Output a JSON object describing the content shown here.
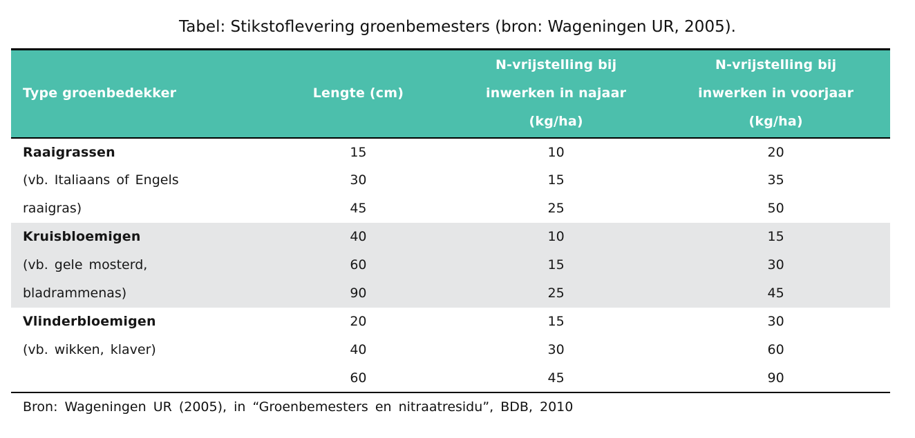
{
  "caption": "Tabel: Stikstoflevering groenbemesters (bron: Wageningen UR, 2005).",
  "colors": {
    "header_bg": "#4CBFAC",
    "header_text": "#FFFFFF",
    "band_bg": "#E5E6E7",
    "border": "#000000",
    "page_bg": "#FFFFFF"
  },
  "table": {
    "headers": {
      "type": "Type groenbedekker",
      "lengte": "Lengte (cm)",
      "najaar": "N-vrijstelling bij\ninwerken in najaar\n(kg/ha)",
      "voorjaar": "N-vrijstelling bij\ninwerken in voorjaar\n(kg/ha)"
    },
    "rows": [
      {
        "label": "Raaigrassen",
        "lengte": "15",
        "najaar": "10",
        "voorjaar": "20"
      },
      {
        "label": "(vb. Italiaans of Engels",
        "lengte": "30",
        "najaar": "15",
        "voorjaar": "35"
      },
      {
        "label": "raaigras)",
        "lengte": "45",
        "najaar": "25",
        "voorjaar": "50"
      },
      {
        "label": "Kruisbloemigen",
        "lengte": "40",
        "najaar": "10",
        "voorjaar": "15"
      },
      {
        "label": "(vb. gele mosterd,",
        "lengte": "60",
        "najaar": "15",
        "voorjaar": "30"
      },
      {
        "label": "bladrammenas)",
        "lengte": "90",
        "najaar": "25",
        "voorjaar": "45"
      },
      {
        "label": "Vlinderbloemigen",
        "lengte": "20",
        "najaar": "15",
        "voorjaar": "30"
      },
      {
        "label": "(vb. wikken, klaver)",
        "lengte": "40",
        "najaar": "30",
        "voorjaar": "60"
      },
      {
        "label": "",
        "lengte": "60",
        "najaar": "45",
        "voorjaar": "90"
      }
    ]
  },
  "source_note": "Bron: Wageningen UR (2005), in “Groenbemesters en nitraatresidu”, BDB, 2010",
  "chart_data": {
    "type": "table",
    "title": "Tabel: Stikstoflevering groenbemesters (bron: Wageningen UR, 2005).",
    "columns": [
      "Type groenbedekker",
      "Lengte (cm)",
      "N-vrijstelling bij inwerken in najaar (kg/ha)",
      "N-vrijstelling bij inwerken in voorjaar (kg/ha)"
    ],
    "groups": [
      {
        "type": "Raaigrassen (vb. Italiaans of Engels raaigras)",
        "rows": [
          [
            15,
            10,
            20
          ],
          [
            30,
            15,
            35
          ],
          [
            45,
            25,
            50
          ]
        ]
      },
      {
        "type": "Kruisbloemigen (vb. gele mosterd, bladrammenas)",
        "rows": [
          [
            40,
            10,
            15
          ],
          [
            60,
            15,
            30
          ],
          [
            90,
            25,
            45
          ]
        ]
      },
      {
        "type": "Vlinderbloemigen (vb. wikken, klaver)",
        "rows": [
          [
            20,
            15,
            30
          ],
          [
            40,
            30,
            60
          ],
          [
            60,
            45,
            90
          ]
        ]
      }
    ],
    "source": "Bron: Wageningen UR (2005), in “Groenbemesters en nitraatresidu”, BDB, 2010",
    "layout": {
      "banded_group": "Kruisbloemigen",
      "header_style": "teal-bold-white"
    }
  }
}
